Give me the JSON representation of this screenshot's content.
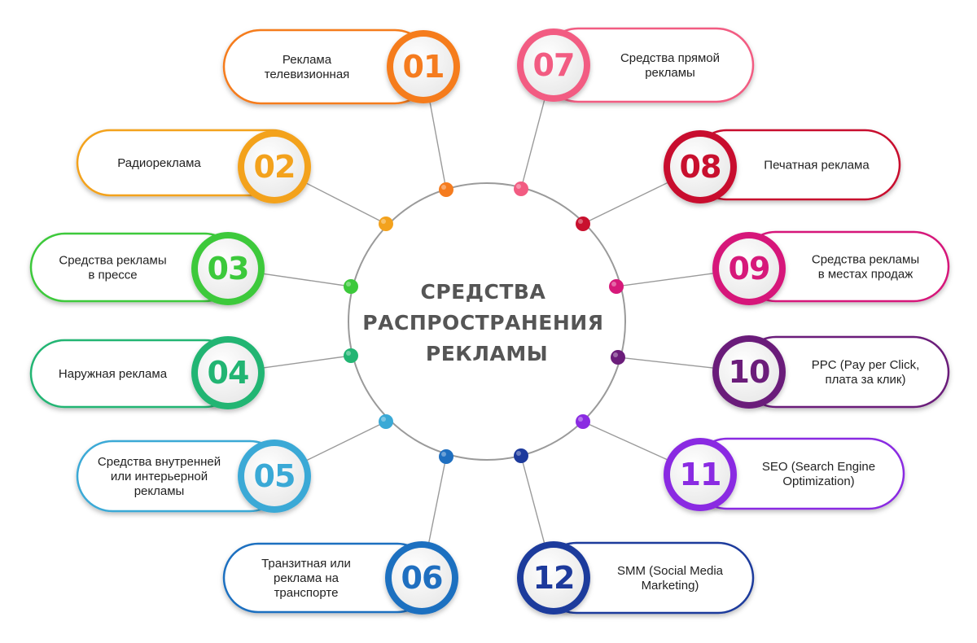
{
  "center": {
    "title_lines": [
      "СРЕДСТВА",
      "РАСПРОСТРАНЕНИЯ",
      "РЕКЛАМЫ"
    ]
  },
  "items": [
    {
      "number": "01",
      "lines": [
        "Реклама",
        "телевизионная"
      ],
      "color": "#f57c1f",
      "side": "left"
    },
    {
      "number": "02",
      "lines": [
        "Радиореклама"
      ],
      "color": "#f3a21d",
      "side": "left"
    },
    {
      "number": "03",
      "lines": [
        "Средства рекламы",
        "в прессе"
      ],
      "color": "#3cc93b",
      "side": "left"
    },
    {
      "number": "04",
      "lines": [
        "Наружная реклама"
      ],
      "color": "#22b573",
      "side": "left"
    },
    {
      "number": "05",
      "lines": [
        "Средства внутренней",
        "или интерьерной",
        "рекламы"
      ],
      "color": "#3aa9d6",
      "side": "left"
    },
    {
      "number": "06",
      "lines": [
        "Транзитная или",
        "реклама на",
        "транспорте"
      ],
      "color": "#1f6fc0",
      "side": "left"
    },
    {
      "number": "07",
      "lines": [
        "Средства прямой",
        "рекламы"
      ],
      "color": "#f25c82",
      "side": "right"
    },
    {
      "number": "08",
      "lines": [
        "Печатная реклама"
      ],
      "color": "#c8102e",
      "side": "right"
    },
    {
      "number": "09",
      "lines": [
        "Средства рекламы",
        "в местах продаж"
      ],
      "color": "#d6197a",
      "side": "right"
    },
    {
      "number": "10",
      "lines": [
        "PPC (Pay per Click,",
        "плата за клик)"
      ],
      "color": "#6b1d7a",
      "side": "right"
    },
    {
      "number": "11",
      "lines": [
        "SEO (Search Engine",
        "Optimization)"
      ],
      "color": "#8a2be2",
      "side": "right"
    },
    {
      "number": "12",
      "lines": [
        "SMM (Social Media",
        "Marketing)"
      ],
      "color": "#1d3a9c",
      "side": "right"
    }
  ]
}
